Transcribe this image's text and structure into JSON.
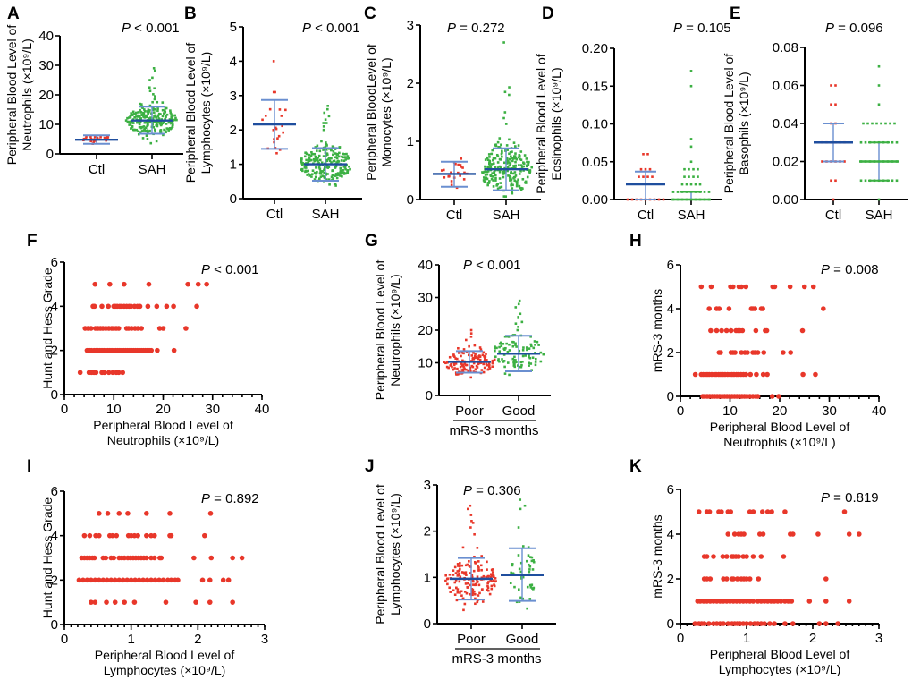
{
  "colors": {
    "red": "#e8372a",
    "green": "#3cb043",
    "mean_line": "#1f4e9e",
    "sd_line": "#6a8fd0"
  },
  "chart_data": [
    {
      "id": "A",
      "type": "scatter",
      "subtype": "dot-plot",
      "p_text": "< 0.001",
      "ylabel_lines": [
        "Peripheral Blood Level of",
        "Neutrophils (×10⁹/L)"
      ],
      "categories": [
        "Ctl",
        "SAH"
      ],
      "ylim": [
        0,
        40
      ],
      "yticks": [
        0,
        10,
        20,
        30,
        40
      ],
      "ytick_labels": [
        "0",
        "10",
        "20",
        "30",
        "40"
      ],
      "groups": [
        {
          "name": "Ctl",
          "color": "red",
          "mean": 4.8,
          "sd_low": 3.4,
          "sd_high": 6.3,
          "n": 24,
          "min": 2.2,
          "max": 6.8,
          "outliers": []
        },
        {
          "name": "SAH",
          "color": "green",
          "mean": 11.3,
          "sd_low": 6.8,
          "sd_high": 16.0,
          "n": 220,
          "min": 3.2,
          "max": 17.5,
          "outliers": [
            18.5,
            19.5,
            20.2,
            21.3,
            22.2,
            22.5,
            25.0,
            25.8,
            28.2,
            29.0
          ]
        }
      ]
    },
    {
      "id": "B",
      "type": "scatter",
      "subtype": "dot-plot",
      "p_text": "< 0.001",
      "ylabel_lines": [
        "Peripheral Blood Level of",
        "Lymphocytes (×10⁹/L)"
      ],
      "categories": [
        "Ctl",
        "SAH"
      ],
      "ylim": [
        0,
        5
      ],
      "yticks": [
        0,
        1,
        2,
        3,
        4,
        5
      ],
      "ytick_labels": [
        "0",
        "1",
        "2",
        "3",
        "4",
        "5"
      ],
      "groups": [
        {
          "name": "Ctl",
          "color": "red",
          "mean": 2.16,
          "sd_low": 1.45,
          "sd_high": 2.87,
          "n": 20,
          "min": 1.1,
          "max": 2.6,
          "outliers": [
            3.1,
            3.1,
            4.0
          ]
        },
        {
          "name": "SAH",
          "color": "green",
          "mean": 1.0,
          "sd_low": 0.52,
          "sd_high": 1.47,
          "n": 220,
          "min": 0.25,
          "max": 1.7,
          "outliers": [
            2.0,
            2.1,
            2.2,
            2.2,
            2.3,
            2.4,
            2.5,
            2.6,
            2.7
          ]
        }
      ]
    },
    {
      "id": "C",
      "type": "scatter",
      "subtype": "dot-plot",
      "p_text": "= 0.272",
      "ylabel_lines": [
        "Peripheral BloodLevel of",
        "Monocytes (×10⁹/L)"
      ],
      "categories": [
        "Ctl",
        "SAH"
      ],
      "ylim": [
        0,
        3
      ],
      "yticks": [
        0,
        1,
        2,
        3
      ],
      "ytick_labels": [
        "0",
        "1",
        "2",
        "3"
      ],
      "groups": [
        {
          "name": "Ctl",
          "color": "red",
          "mean": 0.44,
          "sd_low": 0.22,
          "sd_high": 0.65,
          "n": 22,
          "min": 0.1,
          "max": 0.9,
          "outliers": []
        },
        {
          "name": "SAH",
          "color": "green",
          "mean": 0.52,
          "sd_low": 0.16,
          "sd_high": 0.88,
          "n": 230,
          "min": 0.05,
          "max": 1.2,
          "outliers": [
            1.3,
            1.4,
            1.5,
            1.8,
            1.85,
            1.93,
            2.7
          ]
        }
      ]
    },
    {
      "id": "D",
      "type": "scatter",
      "subtype": "dot-plot",
      "p_text": "= 0.105",
      "ylabel_lines": [
        "Peripheral Blood Level of",
        "Eosinophils (×10⁹/L)"
      ],
      "categories": [
        "Ctl",
        "SAH"
      ],
      "ylim": [
        0,
        0.2
      ],
      "yticks": [
        0,
        0.05,
        0.1,
        0.15,
        0.2
      ],
      "ytick_labels": [
        "0.00",
        "0.05",
        "0.10",
        "0.15",
        "0.20"
      ],
      "groups": [
        {
          "name": "Ctl",
          "color": "red",
          "mean": 0.02,
          "sd_low": 0.0,
          "sd_high": 0.037,
          "discrete": [
            [
              0,
              10
            ],
            [
              0.03,
              4
            ],
            [
              0.04,
              3
            ],
            [
              0.06,
              2
            ]
          ]
        },
        {
          "name": "SAH",
          "color": "green",
          "mean": 0.0,
          "sd_low": 0.0,
          "sd_high": 0.01,
          "discrete": [
            [
              0,
              40
            ],
            [
              0.01,
              12
            ],
            [
              0.02,
              5
            ],
            [
              0.03,
              4
            ],
            [
              0.04,
              4
            ],
            [
              0.05,
              1
            ],
            [
              0.07,
              1
            ],
            [
              0.08,
              1
            ],
            [
              0.15,
              1
            ],
            [
              0.17,
              1
            ]
          ]
        }
      ]
    },
    {
      "id": "E",
      "type": "scatter",
      "subtype": "dot-plot",
      "p_text": "= 0.096",
      "ylabel_lines": [
        "Peripheral Blood Level of",
        "Basophils (×10⁹/L)"
      ],
      "categories": [
        "Ctl",
        "SAH"
      ],
      "ylim": [
        0,
        0.08
      ],
      "yticks": [
        0,
        0.02,
        0.04,
        0.06,
        0.08
      ],
      "ytick_labels": [
        "0.00",
        "0.02",
        "0.04",
        "0.06",
        "0.08"
      ],
      "groups": [
        {
          "name": "Ctl",
          "color": "red",
          "mean": 0.03,
          "sd_low": 0.02,
          "sd_high": 0.04,
          "discrete": [
            [
              0,
              1
            ],
            [
              0.01,
              2
            ],
            [
              0.02,
              6
            ],
            [
              0.03,
              6
            ],
            [
              0.04,
              2
            ],
            [
              0.05,
              2
            ],
            [
              0.06,
              2
            ]
          ]
        },
        {
          "name": "SAH",
          "color": "green",
          "mean": 0.02,
          "sd_low": 0.01,
          "sd_high": 0.03,
          "discrete": [
            [
              0,
              1
            ],
            [
              0.01,
              30
            ],
            [
              0.02,
              25
            ],
            [
              0.03,
              20
            ],
            [
              0.04,
              8
            ],
            [
              0.05,
              1
            ],
            [
              0.06,
              1
            ],
            [
              0.07,
              1
            ]
          ]
        }
      ]
    },
    {
      "id": "F",
      "type": "scatter",
      "p_text": "< 0.001",
      "ylabel_lines": [
        "Hunt and Hess Grade"
      ],
      "xlabel_lines": [
        "Peripheral Blood Level of",
        "Neutrophils (×10⁹/L)"
      ],
      "xlim": [
        0,
        40
      ],
      "xticks": [
        0,
        10,
        20,
        30,
        40
      ],
      "xtick_labels": [
        "0",
        "10",
        "20",
        "30",
        "40"
      ],
      "xminor": 2,
      "ylim": [
        0,
        6
      ],
      "yticks": [
        0,
        2,
        4,
        6
      ],
      "ytick_labels": [
        "0",
        "2",
        "4",
        "6"
      ],
      "points": {
        "5": [
          6.2,
          9.2,
          12.1,
          17.1,
          25.0,
          27.1,
          28.8
        ],
        "4": [
          5.8,
          6.1,
          7.6,
          8.9,
          10.0,
          10.3,
          10.7,
          11.2,
          11.6,
          12.1,
          12.6,
          13.1,
          13.5,
          14.2,
          14.8,
          15.3,
          16.9,
          18.7,
          20.7,
          22.1,
          26.8
        ],
        "3": [
          4.2,
          4.8,
          5.4,
          6.3,
          6.8,
          7.3,
          7.8,
          8.4,
          9.0,
          9.6,
          10.0,
          10.5,
          11.0,
          12.6,
          13.0,
          13.6,
          14.3,
          14.9,
          15.6,
          19.3,
          20.0,
          24.6
        ],
        "2": [
          4.6,
          4.9,
          5.2,
          5.5,
          6.0,
          6.4,
          6.8,
          7.2,
          7.6,
          8.0,
          8.4,
          8.8,
          9.2,
          9.6,
          10.0,
          10.4,
          10.8,
          11.2,
          11.6,
          12.0,
          12.4,
          12.8,
          13.2,
          13.6,
          14.0,
          14.4,
          14.8,
          15.2,
          15.6,
          16.0,
          16.4,
          16.8,
          17.2,
          17.6,
          18.8,
          22.2
        ],
        "1": [
          3.2,
          5.0,
          5.5,
          6.0,
          6.4,
          7.6,
          8.1,
          9.0,
          9.8,
          10.5,
          11.0,
          11.8
        ]
      }
    },
    {
      "id": "G",
      "type": "scatter",
      "subtype": "dot-plot",
      "p_text": "< 0.001",
      "ylabel_lines": [
        "Peripheral Blood Level of",
        "Neutrophils (×10⁹/L)"
      ],
      "categories": [
        "Poor",
        "Good"
      ],
      "group_label": "mRS-3 months",
      "ylim": [
        0,
        40
      ],
      "yticks": [
        0,
        10,
        20,
        30,
        40
      ],
      "ytick_labels": [
        "0",
        "10",
        "20",
        "30",
        "40"
      ],
      "groups": [
        {
          "name": "Poor",
          "color": "red",
          "mean": 10.3,
          "sd_low": 7.0,
          "sd_high": 13.6,
          "n": 130,
          "min": 3.0,
          "max": 16.0,
          "outliers": [
            17,
            18,
            19,
            20
          ]
        },
        {
          "name": "Good",
          "color": "green",
          "mean": 12.8,
          "sd_low": 7.4,
          "sd_high": 18.3,
          "n": 90,
          "min": 4.2,
          "max": 18.5,
          "outliers": [
            20,
            21,
            22,
            22.5,
            24,
            25,
            27,
            28,
            29
          ]
        }
      ]
    },
    {
      "id": "H",
      "type": "scatter",
      "p_text": "= 0.008",
      "ylabel_lines": [
        "mRS-3 months"
      ],
      "xlabel_lines": [
        "Peripheral Blood Level of",
        "Neutrophils (×10⁹/L)"
      ],
      "xlim": [
        0,
        40
      ],
      "xticks": [
        0,
        10,
        20,
        30,
        40
      ],
      "xtick_labels": [
        "0",
        "10",
        "20",
        "30",
        "40"
      ],
      "xminor": 2,
      "ylim": [
        0,
        6
      ],
      "yticks": [
        0,
        2,
        4,
        6
      ],
      "ytick_labels": [
        "0",
        "2",
        "4",
        "6"
      ],
      "points": {
        "5": [
          4.2,
          6.2,
          10.1,
          10.6,
          11.8,
          12.3,
          13.2,
          18.6,
          19.0,
          22.1,
          25.0,
          26.8
        ],
        "4": [
          5.8,
          7.3,
          7.8,
          9.8,
          14.3,
          14.6,
          15.0,
          16.3,
          16.6,
          28.8
        ],
        "3": [
          6.1,
          7.3,
          8.3,
          9.3,
          10.2,
          11.2,
          11.6,
          12.0,
          12.5,
          15.2,
          17.1,
          17.4,
          24.6
        ],
        "2": [
          7.8,
          8.1,
          10.2,
          10.6,
          11.0,
          12.3,
          13.0,
          13.5,
          14.6,
          15.0,
          15.6,
          16.8,
          20.7,
          22.2
        ],
        "1": [
          3.0,
          4.2,
          4.6,
          5.0,
          5.4,
          5.8,
          6.3,
          6.8,
          7.2,
          7.7,
          8.1,
          8.6,
          9.0,
          9.5,
          10.0,
          10.4,
          10.8,
          11.3,
          11.7,
          12.2,
          12.7,
          13.2,
          14.1,
          15.3,
          16.7,
          17.5,
          24.7,
          27.2
        ],
        "0": [
          4.5,
          4.9,
          5.4,
          5.9,
          6.4,
          6.9,
          7.4,
          7.9,
          8.4,
          8.9,
          9.4,
          9.9,
          10.4,
          10.9,
          11.4,
          11.9,
          12.4,
          12.9,
          13.4,
          14.0,
          14.6,
          15.2,
          15.6,
          18.5,
          19.8
        ]
      }
    },
    {
      "id": "I",
      "type": "scatter",
      "p_text": "= 0.892",
      "ylabel_lines": [
        "Hunt and Hess Grade"
      ],
      "xlabel_lines": [
        "Peripheral Blood Level of",
        "Lymphocytes (×10⁹/L)"
      ],
      "xlim": [
        0,
        3
      ],
      "xticks": [
        0,
        1,
        2,
        3
      ],
      "xtick_labels": [
        "0",
        "1",
        "2",
        "3"
      ],
      "xminor": 0.1,
      "ylim": [
        0,
        6
      ],
      "yticks": [
        0,
        2,
        4,
        6
      ],
      "ytick_labels": [
        "0",
        "2",
        "4",
        "6"
      ],
      "points": {
        "5": [
          0.52,
          0.65,
          0.82,
          0.95,
          1.23,
          1.58,
          2.19
        ],
        "4": [
          0.3,
          0.38,
          0.47,
          0.52,
          0.68,
          0.72,
          0.78,
          0.96,
          1.0,
          1.05,
          1.1,
          1.23,
          1.3,
          1.35,
          1.58,
          1.6,
          2.1
        ],
        "3": [
          0.26,
          0.3,
          0.34,
          0.38,
          0.42,
          0.45,
          0.58,
          0.62,
          0.7,
          0.74,
          0.82,
          0.86,
          0.9,
          0.95,
          0.99,
          1.03,
          1.07,
          1.11,
          1.15,
          1.19,
          1.23,
          1.3,
          1.35,
          1.43,
          1.45,
          1.94,
          2.2,
          2.52,
          2.66
        ],
        "2": [
          0.22,
          0.28,
          0.34,
          0.4,
          0.46,
          0.52,
          0.58,
          0.64,
          0.7,
          0.76,
          0.82,
          0.88,
          0.94,
          1.0,
          1.06,
          1.12,
          1.18,
          1.24,
          1.3,
          1.36,
          1.42,
          1.48,
          1.55,
          1.6,
          1.66,
          1.7,
          2.07,
          2.18,
          2.38,
          2.46
        ],
        "1": [
          0.4,
          0.46,
          0.63,
          0.76,
          0.9,
          1.05,
          1.52,
          1.97,
          2.18,
          2.52
        ]
      }
    },
    {
      "id": "J",
      "type": "scatter",
      "subtype": "dot-plot",
      "p_text": "= 0.306",
      "ylabel_lines": [
        "Peripheral Blood Level of",
        "Lymphocytes (×10⁹/L)"
      ],
      "categories": [
        "Poor",
        "Good"
      ],
      "group_label": "mRS-3 months",
      "ylim": [
        0,
        3
      ],
      "yticks": [
        0,
        1,
        2,
        3
      ],
      "ytick_labels": [
        "0",
        "1",
        "2",
        "3"
      ],
      "groups": [
        {
          "name": "Poor",
          "color": "red",
          "mean": 0.97,
          "sd_low": 0.52,
          "sd_high": 1.42,
          "n": 150,
          "min": 0.22,
          "max": 1.7,
          "outliers": [
            1.93,
            2.08,
            2.18,
            2.22,
            2.35,
            2.48,
            2.55
          ]
        },
        {
          "name": "Good",
          "color": "green",
          "mean": 1.05,
          "sd_low": 0.49,
          "sd_high": 1.63,
          "n": 42,
          "min": 0.3,
          "max": 1.7,
          "outliers": [
            2.08,
            2.48,
            2.55,
            2.68
          ]
        }
      ]
    },
    {
      "id": "K",
      "type": "scatter",
      "p_text": "= 0.819",
      "ylabel_lines": [
        "mRS-3 months"
      ],
      "xlabel_lines": [
        "Peripheral Blood Level of",
        "Lymphocytes (×10⁹/L)"
      ],
      "xlim": [
        0,
        3
      ],
      "xticks": [
        0,
        1,
        2,
        3
      ],
      "xtick_labels": [
        "0",
        "1",
        "2",
        "3"
      ],
      "xminor": 0.1,
      "ylim": [
        0,
        6
      ],
      "yticks": [
        0,
        2,
        4,
        6
      ],
      "ytick_labels": [
        "0",
        "2",
        "4",
        "6"
      ],
      "points": {
        "5": [
          0.28,
          0.4,
          0.44,
          0.58,
          0.62,
          0.72,
          0.76,
          1.05,
          1.1,
          1.24,
          1.32,
          1.38,
          1.58,
          2.48
        ],
        "4": [
          0.72,
          0.82,
          0.88,
          0.92,
          0.96,
          1.2,
          1.25,
          1.66,
          1.7,
          2.08,
          2.55,
          2.7
        ],
        "3": [
          0.36,
          0.4,
          0.5,
          0.64,
          0.7,
          0.78,
          0.8,
          0.84,
          0.88,
          0.95,
          1.0,
          1.1,
          1.22,
          1.56
        ],
        "2": [
          0.36,
          0.4,
          0.45,
          0.65,
          0.7,
          0.78,
          0.8,
          0.86,
          0.92,
          0.96,
          1.0,
          1.05,
          1.18,
          2.2
        ],
        "1": [
          0.26,
          0.3,
          0.35,
          0.4,
          0.45,
          0.5,
          0.55,
          0.6,
          0.65,
          0.7,
          0.75,
          0.8,
          0.85,
          0.9,
          0.95,
          1.0,
          1.05,
          1.1,
          1.17,
          1.22,
          1.27,
          1.32,
          1.37,
          1.42,
          1.47,
          1.52,
          1.58,
          1.63,
          1.68,
          1.95,
          2.2,
          2.55
        ],
        "0": [
          0.22,
          0.28,
          0.32,
          0.36,
          0.43,
          0.5,
          0.55,
          0.6,
          0.65,
          0.72,
          0.78,
          0.82,
          0.86,
          0.9,
          0.95,
          1.0,
          1.06,
          1.12,
          1.17,
          1.22,
          1.27,
          1.35,
          1.42,
          1.58,
          1.7,
          2.1,
          2.2,
          2.38
        ]
      }
    }
  ]
}
